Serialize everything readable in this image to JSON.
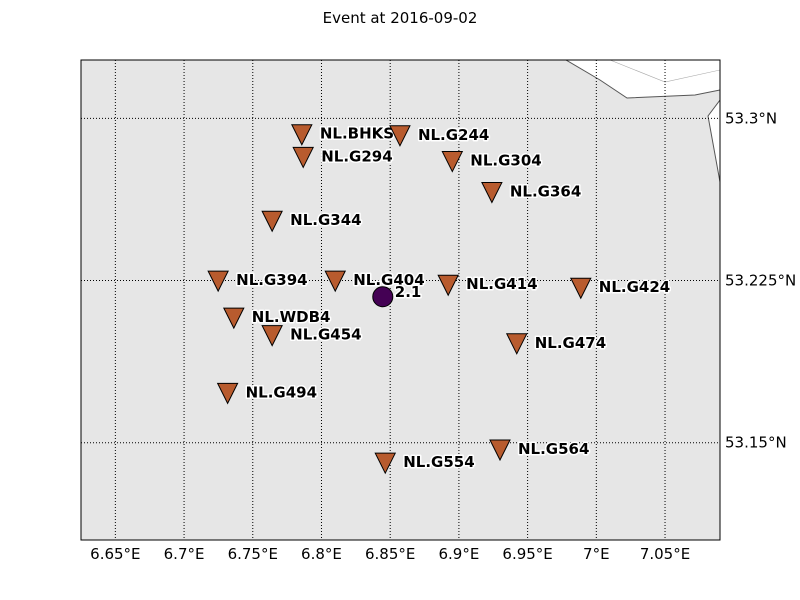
{
  "title": "Event at 2016-09-02",
  "colors": {
    "ocean": "#e6e6e6",
    "land": "#ffffff",
    "station_fill": "#b85b2e",
    "event_fill": "#440154",
    "coastline": "#555555"
  },
  "map": {
    "lon_range": [
      6.625,
      7.09
    ],
    "lat_range": [
      53.105,
      53.327
    ],
    "lon_ticks": [
      {
        "value": 6.65,
        "label": "6.65°E"
      },
      {
        "value": 6.7,
        "label": "6.7°E"
      },
      {
        "value": 6.75,
        "label": "6.75°E"
      },
      {
        "value": 6.8,
        "label": "6.8°E"
      },
      {
        "value": 6.85,
        "label": "6.85°E"
      },
      {
        "value": 6.9,
        "label": "6.9°E"
      },
      {
        "value": 6.95,
        "label": "6.95°E"
      },
      {
        "value": 7.0,
        "label": "7°E"
      },
      {
        "value": 7.05,
        "label": "7.05°E"
      }
    ],
    "lat_ticks": [
      {
        "value": 53.3,
        "label": "53.3°N"
      },
      {
        "value": 53.225,
        "label": "53.225°N"
      },
      {
        "value": 53.15,
        "label": "53.15°N"
      }
    ],
    "grid": "dotted"
  },
  "stations": [
    {
      "name": "NL.BHKS",
      "lon": 6.7857,
      "lat": 53.2929
    },
    {
      "name": "NL.G244",
      "lon": 6.8571,
      "lat": 53.2924
    },
    {
      "name": "NL.G294",
      "lon": 6.7867,
      "lat": 53.2824
    },
    {
      "name": "NL.G304",
      "lon": 6.8952,
      "lat": 53.2805
    },
    {
      "name": "NL.G364",
      "lon": 6.924,
      "lat": 53.2662
    },
    {
      "name": "NL.G344",
      "lon": 6.7641,
      "lat": 53.2529
    },
    {
      "name": "NL.G394",
      "lon": 6.7248,
      "lat": 53.2252
    },
    {
      "name": "NL.G404",
      "lon": 6.81,
      "lat": 53.2252
    },
    {
      "name": "NL.G414",
      "lon": 6.8922,
      "lat": 53.2233
    },
    {
      "name": "NL.G424",
      "lon": 6.9887,
      "lat": 53.2219
    },
    {
      "name": "NL.WDB4",
      "lon": 6.7362,
      "lat": 53.2081
    },
    {
      "name": "NL.G454",
      "lon": 6.7641,
      "lat": 53.2
    },
    {
      "name": "NL.G474",
      "lon": 6.9421,
      "lat": 53.1962
    },
    {
      "name": "NL.G494",
      "lon": 6.7317,
      "lat": 53.1733
    },
    {
      "name": "NL.G564",
      "lon": 6.9299,
      "lat": 53.1471
    },
    {
      "name": "NL.G554",
      "lon": 6.8464,
      "lat": 53.141
    }
  ],
  "event": {
    "lon": 6.8446,
    "lat": 53.2175,
    "magnitude": "2.1"
  }
}
